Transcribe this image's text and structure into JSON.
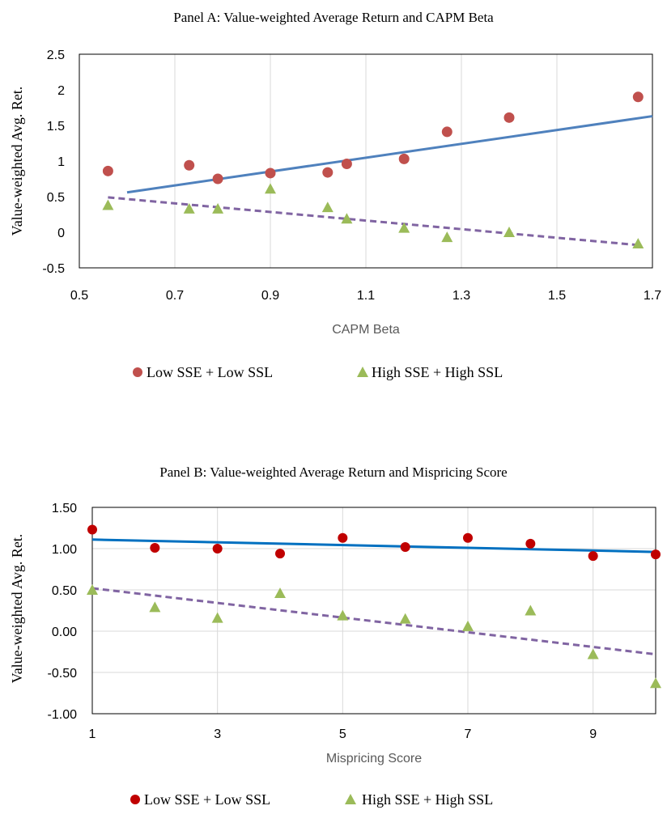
{
  "chart_data": [
    {
      "type": "scatter",
      "title": "Panel A: Value-weighted Average Return and CAPM Beta",
      "xlabel": "CAPM Beta",
      "ylabel": "Value-weighted Avg. Ret.",
      "xlim": [
        0.5,
        1.7
      ],
      "ylim": [
        -0.5,
        2.5
      ],
      "xticks": [
        0.5,
        0.7,
        0.9,
        1.1,
        1.3,
        1.5,
        1.7
      ],
      "xtick_labels": [
        "0.5",
        "0.7",
        "0.9",
        "1.1",
        "1.3",
        "1.5",
        "1.7"
      ],
      "yticks": [
        -0.5,
        0,
        0.5,
        1,
        1.5,
        2,
        2.5
      ],
      "ytick_labels": [
        "-0.5",
        "0",
        "0.5",
        "1",
        "1.5",
        "2",
        "2.5"
      ],
      "grid": "vertical",
      "legend_position": "bottom",
      "series": [
        {
          "name": "Low SSE + Low SSL",
          "marker": "circle",
          "color": "#c0504d",
          "x": [
            0.56,
            0.73,
            0.79,
            0.9,
            1.02,
            1.06,
            1.18,
            1.27,
            1.4,
            1.67
          ],
          "y": [
            0.86,
            0.94,
            0.75,
            0.83,
            0.84,
            0.96,
            1.03,
            1.41,
            1.61,
            1.9
          ],
          "trendline": {
            "x": [
              0.6,
              1.7
            ],
            "y": [
              0.56,
              1.63
            ],
            "color": "#4f81bd",
            "style": "solid"
          }
        },
        {
          "name": "High SSE + High SSL",
          "marker": "triangle",
          "color": "#9bbb59",
          "x": [
            0.56,
            0.73,
            0.79,
            0.9,
            1.02,
            1.06,
            1.18,
            1.27,
            1.4,
            1.67
          ],
          "y": [
            0.38,
            0.33,
            0.33,
            0.61,
            0.35,
            0.19,
            0.06,
            -0.07,
            0.0,
            -0.16
          ],
          "trendline": {
            "x": [
              0.56,
              1.67
            ],
            "y": [
              0.49,
              -0.18
            ],
            "color": "#8064a2",
            "style": "dashed"
          }
        }
      ]
    },
    {
      "type": "scatter",
      "title": "Panel B: Value-weighted Average Return and Mispricing Score",
      "xlabel": "Mispricing Score",
      "ylabel": "Value-weighted Avg. Ret.",
      "xlim": [
        1,
        10
      ],
      "ylim": [
        -1.0,
        1.5
      ],
      "xticks": [
        1,
        3,
        5,
        7,
        9
      ],
      "xtick_labels": [
        "1",
        "3",
        "5",
        "7",
        "9"
      ],
      "yticks": [
        -1.0,
        -0.5,
        0,
        0.5,
        1.0,
        1.5
      ],
      "ytick_labels": [
        "-1.00",
        "-0.50",
        "0.00",
        "0.50",
        "1.00",
        "1.50"
      ],
      "grid": "both",
      "legend_position": "bottom",
      "series": [
        {
          "name": "Low SSE + Low SSL",
          "marker": "circle",
          "color": "#c00000",
          "x": [
            1,
            2,
            3,
            4,
            5,
            6,
            7,
            8,
            9,
            10
          ],
          "y": [
            1.23,
            1.01,
            1.0,
            0.94,
            1.13,
            1.02,
            1.13,
            1.06,
            0.91,
            0.93
          ],
          "trendline": {
            "x": [
              1,
              10
            ],
            "y": [
              1.11,
              0.96
            ],
            "color": "#0070c0",
            "style": "solid"
          }
        },
        {
          "name": "High SSE + High SSL",
          "marker": "triangle",
          "color": "#9bbb59",
          "x": [
            1,
            2,
            3,
            4,
            5,
            6,
            7,
            8,
            9,
            10
          ],
          "y": [
            0.5,
            0.29,
            0.16,
            0.46,
            0.19,
            0.15,
            0.06,
            0.25,
            -0.28,
            -0.63
          ],
          "trendline": {
            "x": [
              1,
              10
            ],
            "y": [
              0.52,
              -0.28
            ],
            "color": "#8064a2",
            "style": "dashed"
          }
        }
      ]
    }
  ]
}
